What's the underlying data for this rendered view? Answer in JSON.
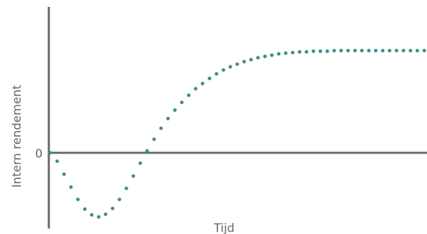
{
  "chart_data": {
    "type": "scatter",
    "title": "",
    "xlabel": "Tijd",
    "ylabel": "Intern rendement",
    "yticks": [
      "0"
    ],
    "xlim": [
      0,
      54
    ],
    "ylim": [
      -1,
      1.6
    ],
    "grid": false,
    "legend": "none",
    "colors": {
      "axis": "#666666",
      "points": "#3f8f8a"
    },
    "series": [
      {
        "values": [
          [
            0,
            0.0
          ],
          [
            1,
            -0.13
          ],
          [
            2,
            -0.33
          ],
          [
            3,
            -0.53
          ],
          [
            4,
            -0.72
          ],
          [
            5,
            -0.87
          ],
          [
            6,
            -0.96
          ],
          [
            7,
            -0.99
          ],
          [
            8,
            -0.95
          ],
          [
            9,
            -0.86
          ],
          [
            10,
            -0.72
          ],
          [
            11,
            -0.55
          ],
          [
            12,
            -0.36
          ],
          [
            13,
            -0.16
          ],
          [
            14,
            0.03
          ],
          [
            15,
            0.21
          ],
          [
            16,
            0.38
          ],
          [
            17,
            0.53
          ],
          [
            18,
            0.66
          ],
          [
            19,
            0.78
          ],
          [
            20,
            0.89
          ],
          [
            21,
            0.99
          ],
          [
            22,
            1.07
          ],
          [
            23,
            1.15
          ],
          [
            24,
            1.22
          ],
          [
            25,
            1.28
          ],
          [
            26,
            1.33
          ],
          [
            27,
            1.37
          ],
          [
            28,
            1.41
          ],
          [
            29,
            1.44
          ],
          [
            30,
            1.47
          ],
          [
            31,
            1.49
          ],
          [
            32,
            1.51
          ],
          [
            33,
            1.53
          ],
          [
            34,
            1.54
          ],
          [
            35,
            1.55
          ],
          [
            36,
            1.56
          ],
          [
            37,
            1.56
          ],
          [
            38,
            1.57
          ],
          [
            39,
            1.57
          ],
          [
            40,
            1.57
          ],
          [
            41,
            1.58
          ],
          [
            42,
            1.58
          ],
          [
            43,
            1.58
          ],
          [
            44,
            1.58
          ],
          [
            45,
            1.58
          ],
          [
            46,
            1.58
          ],
          [
            47,
            1.58
          ],
          [
            48,
            1.58
          ],
          [
            49,
            1.58
          ],
          [
            50,
            1.58
          ],
          [
            51,
            1.58
          ],
          [
            52,
            1.58
          ],
          [
            53,
            1.58
          ],
          [
            54,
            1.58
          ]
        ]
      }
    ]
  }
}
